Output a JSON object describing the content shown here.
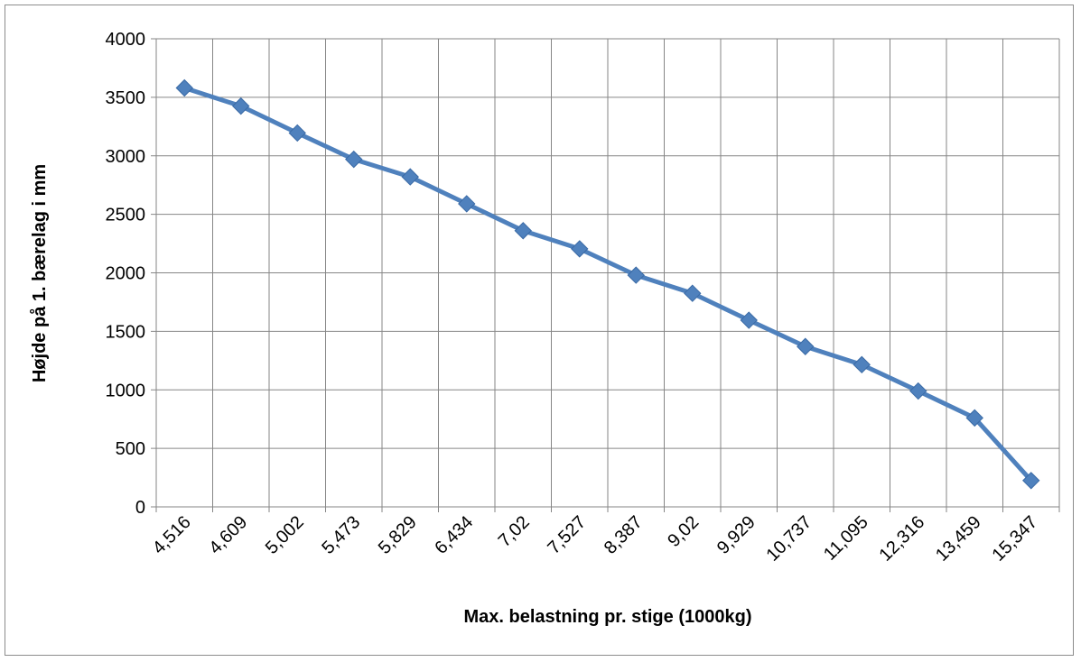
{
  "chart_data": {
    "type": "line",
    "title": "",
    "xlabel": "Max. belastning pr. stige (1000kg)",
    "ylabel": "Højde på 1. bærelag i mm",
    "categories": [
      "4,516",
      "4,609",
      "5,002",
      "5,473",
      "5,829",
      "6,434",
      "7,02",
      "7,527",
      "8,387",
      "9,02",
      "9,929",
      "10,737",
      "11,095",
      "12,316",
      "13,459",
      "15,347"
    ],
    "series": [
      {
        "values": [
          3580,
          3425,
          3195,
          2970,
          2820,
          2590,
          2360,
          2205,
          1980,
          1825,
          1595,
          1370,
          1215,
          990,
          760,
          225
        ]
      }
    ],
    "ylim": [
      0,
      4000
    ],
    "yticks": [
      "0",
      "500",
      "1000",
      "1500",
      "2000",
      "2500",
      "3000",
      "3500",
      "4000"
    ],
    "grid": true,
    "legend": "none",
    "colors": {
      "series": "#4f81bd",
      "grid": "#868686",
      "axis": "#868686"
    }
  }
}
